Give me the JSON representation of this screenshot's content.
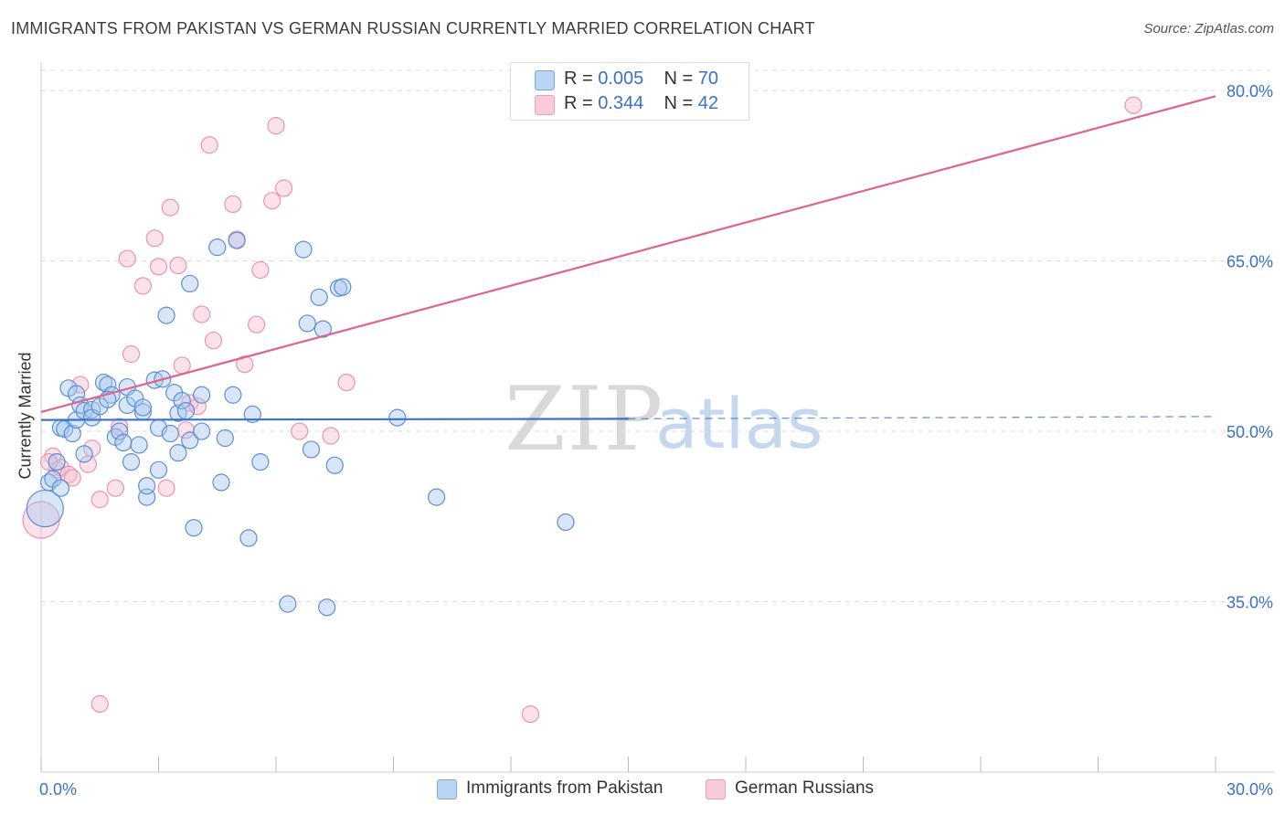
{
  "title": "IMMIGRANTS FROM PAKISTAN VS GERMAN RUSSIAN CURRENTLY MARRIED CORRELATION CHART",
  "source": "Source: ZipAtlas.com",
  "watermark": {
    "zip": "ZIP",
    "atlas": "atlas"
  },
  "legend_top": [
    {
      "r_label": "R =",
      "r_value": "0.005",
      "n_label": "N =",
      "n_value": "70"
    },
    {
      "r_label": "R =",
      "r_value": "0.344",
      "n_label": "N =",
      "n_value": "42"
    }
  ],
  "colors": {
    "blue_fill": "#a9c8f0",
    "blue_stroke": "#5b8fd6",
    "blue_line": "#3a72c8",
    "pink_fill": "#f7bfd0",
    "pink_stroke": "#e994b0",
    "pink_line": "#e0628e",
    "tick_label": "#3a72c8",
    "grid": "#dcdcdc"
  },
  "chart_data": {
    "type": "scatter",
    "ylabel": "Currently Married",
    "xlim": [
      0,
      30
    ],
    "ylim": [
      20,
      82.5
    ],
    "y_ticks": [
      35,
      50,
      65,
      80
    ],
    "y_tick_labels": [
      "35.0%",
      "50.0%",
      "65.0%",
      "80.0%"
    ],
    "x_tick_labels": [
      "0.0%",
      "30.0%"
    ],
    "grid": "horizontal dashed",
    "legend_placement": "top-center and bottom",
    "series": [
      {
        "name": "Immigrants from Pakistan",
        "color": "blue",
        "trend": {
          "x": [
            0,
            15
          ],
          "y": [
            51.0,
            51.1
          ],
          "dashed_to": [
            30,
            51.3
          ]
        },
        "points": [
          [
            0.2,
            45.5
          ],
          [
            0.3,
            45.8
          ],
          [
            0.5,
            45.0
          ],
          [
            0.4,
            47.3
          ],
          [
            0.5,
            50.3
          ],
          [
            0.6,
            50.2
          ],
          [
            0.8,
            49.8
          ],
          [
            0.7,
            53.8
          ],
          [
            0.9,
            51.0
          ],
          [
            0.9,
            53.3
          ],
          [
            1.0,
            52.3
          ],
          [
            1.1,
            51.8
          ],
          [
            1.3,
            51.9
          ],
          [
            1.3,
            51.2
          ],
          [
            1.1,
            48.0
          ],
          [
            1.5,
            52.2
          ],
          [
            1.6,
            54.3
          ],
          [
            1.7,
            54.1
          ],
          [
            1.8,
            53.2
          ],
          [
            1.9,
            49.5
          ],
          [
            1.7,
            52.8
          ],
          [
            2.0,
            50.0
          ],
          [
            2.1,
            49.0
          ],
          [
            2.2,
            52.3
          ],
          [
            2.2,
            53.9
          ],
          [
            2.3,
            47.3
          ],
          [
            2.4,
            52.9
          ],
          [
            2.5,
            48.8
          ],
          [
            2.6,
            51.7
          ],
          [
            2.6,
            52.1
          ],
          [
            2.7,
            44.2
          ],
          [
            2.7,
            45.2
          ],
          [
            2.9,
            54.5
          ],
          [
            3.0,
            50.3
          ],
          [
            3.0,
            46.6
          ],
          [
            3.1,
            54.6
          ],
          [
            3.2,
            60.2
          ],
          [
            3.3,
            49.8
          ],
          [
            3.4,
            53.4
          ],
          [
            3.5,
            48.1
          ],
          [
            3.5,
            51.6
          ],
          [
            3.6,
            52.7
          ],
          [
            3.7,
            51.8
          ],
          [
            3.8,
            49.2
          ],
          [
            3.8,
            63.0
          ],
          [
            3.9,
            41.5
          ],
          [
            4.1,
            53.2
          ],
          [
            4.1,
            50.0
          ],
          [
            4.5,
            66.2
          ],
          [
            4.6,
            45.5
          ],
          [
            4.7,
            49.4
          ],
          [
            4.9,
            53.2
          ],
          [
            5.0,
            66.8
          ],
          [
            5.3,
            40.6
          ],
          [
            5.4,
            51.5
          ],
          [
            5.6,
            47.3
          ],
          [
            6.3,
            34.8
          ],
          [
            6.7,
            66.0
          ],
          [
            6.8,
            59.5
          ],
          [
            6.9,
            48.4
          ],
          [
            7.1,
            61.8
          ],
          [
            7.2,
            59.0
          ],
          [
            7.3,
            34.5
          ],
          [
            7.5,
            47.0
          ],
          [
            7.6,
            62.6
          ],
          [
            7.7,
            62.7
          ],
          [
            9.1,
            51.2
          ],
          [
            10.1,
            44.2
          ],
          [
            13.4,
            42.0
          ],
          [
            0.1,
            43.2
          ]
        ]
      },
      {
        "name": "German Russians",
        "color": "pink",
        "trend": {
          "x": [
            0,
            30
          ],
          "y": [
            51.7,
            79.5
          ]
        },
        "points": [
          [
            0.0,
            42.2
          ],
          [
            0.3,
            47.8
          ],
          [
            0.4,
            46.6
          ],
          [
            0.5,
            46.8
          ],
          [
            0.7,
            46.2
          ],
          [
            0.8,
            45.9
          ],
          [
            1.0,
            54.1
          ],
          [
            1.2,
            47.1
          ],
          [
            1.3,
            48.5
          ],
          [
            1.5,
            44.0
          ],
          [
            1.5,
            26.0
          ],
          [
            1.9,
            45.0
          ],
          [
            2.0,
            50.4
          ],
          [
            2.2,
            65.2
          ],
          [
            2.3,
            56.8
          ],
          [
            2.6,
            62.8
          ],
          [
            2.9,
            67.0
          ],
          [
            3.0,
            64.5
          ],
          [
            3.2,
            45.0
          ],
          [
            3.3,
            69.7
          ],
          [
            3.5,
            64.6
          ],
          [
            3.6,
            55.8
          ],
          [
            3.7,
            50.1
          ],
          [
            3.8,
            52.5
          ],
          [
            4.0,
            52.2
          ],
          [
            4.1,
            60.3
          ],
          [
            4.3,
            75.2
          ],
          [
            4.4,
            58.0
          ],
          [
            4.9,
            70.0
          ],
          [
            5.0,
            66.9
          ],
          [
            5.2,
            55.9
          ],
          [
            5.5,
            59.4
          ],
          [
            5.6,
            64.2
          ],
          [
            5.9,
            70.3
          ],
          [
            6.0,
            76.9
          ],
          [
            6.2,
            71.4
          ],
          [
            6.6,
            50.0
          ],
          [
            7.4,
            49.6
          ],
          [
            7.8,
            54.3
          ],
          [
            12.5,
            25.1
          ],
          [
            27.9,
            78.7
          ],
          [
            0.2,
            47.3
          ]
        ]
      }
    ]
  }
}
